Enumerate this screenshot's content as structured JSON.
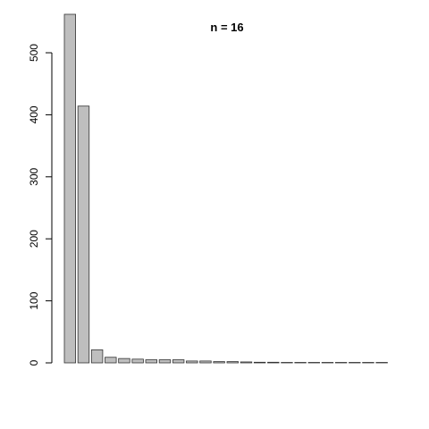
{
  "chart_data": {
    "type": "bar",
    "title": "n =  16",
    "xlabel": "",
    "ylabel": "",
    "ylim": [
      0,
      562
    ],
    "y_ticks": [
      0,
      100,
      200,
      300,
      400,
      500
    ],
    "y_tick_labels": [
      "0",
      "100",
      "200",
      "300",
      "400",
      "500"
    ],
    "categories": [
      "",
      "",
      "",
      "",
      "",
      "",
      "",
      "",
      "",
      "",
      "",
      "",
      "",
      "",
      "",
      "",
      "",
      "",
      "",
      "",
      "",
      "",
      "",
      ""
    ],
    "values": [
      562,
      414,
      21,
      9,
      7,
      6,
      5,
      5,
      5,
      3,
      3,
      2,
      2,
      1.5,
      1,
      1,
      0.6,
      0.5,
      0.4,
      0.3,
      0.3,
      0.2,
      0.2,
      0.1
    ],
    "bar_color": "#bebebe",
    "grid": false,
    "legend": "none"
  }
}
